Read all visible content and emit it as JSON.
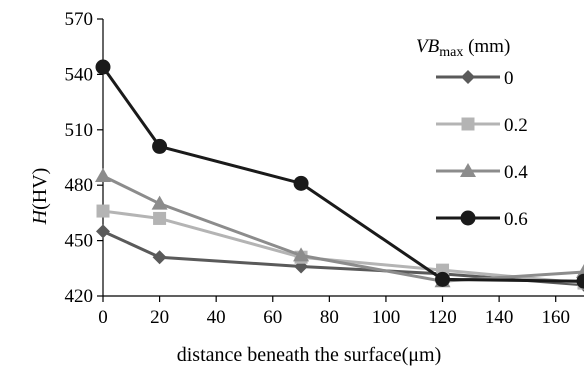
{
  "chart_data": {
    "type": "line",
    "x_axis": {
      "label": "distance beneath the surface(μm)",
      "range": [
        0,
        170
      ],
      "ticks": [
        0,
        20,
        40,
        60,
        80,
        100,
        120,
        140,
        160
      ]
    },
    "y_axis": {
      "label_main": "H",
      "label_unit": "(HV)",
      "range": [
        420,
        570
      ],
      "ticks": [
        420,
        450,
        480,
        510,
        540,
        570
      ]
    },
    "legend": {
      "title_main": "VB",
      "title_sub": "max",
      "title_unit": " (mm)",
      "placement": "top-right"
    },
    "grid": false,
    "series": [
      {
        "name": "0",
        "color": "#5a5a5a",
        "marker": "diamond",
        "points": [
          [
            0,
            455
          ],
          [
            20,
            441
          ],
          [
            70,
            436
          ],
          [
            120,
            432
          ],
          [
            170,
            426
          ]
        ]
      },
      {
        "name": "0.2",
        "color": "#b4b4b4",
        "marker": "square",
        "points": [
          [
            0,
            466
          ],
          [
            20,
            462
          ],
          [
            70,
            441
          ],
          [
            120,
            434
          ],
          [
            170,
            427
          ]
        ]
      },
      {
        "name": "0.4",
        "color": "#8c8c8c",
        "marker": "triangle",
        "points": [
          [
            0,
            485
          ],
          [
            20,
            470
          ],
          [
            70,
            442
          ],
          [
            120,
            428
          ],
          [
            170,
            433
          ]
        ]
      },
      {
        "name": "0.6",
        "color": "#1a1a1a",
        "marker": "circle",
        "points": [
          [
            0,
            544
          ],
          [
            20,
            501
          ],
          [
            70,
            481
          ],
          [
            120,
            429
          ],
          [
            170,
            428
          ]
        ]
      }
    ]
  }
}
